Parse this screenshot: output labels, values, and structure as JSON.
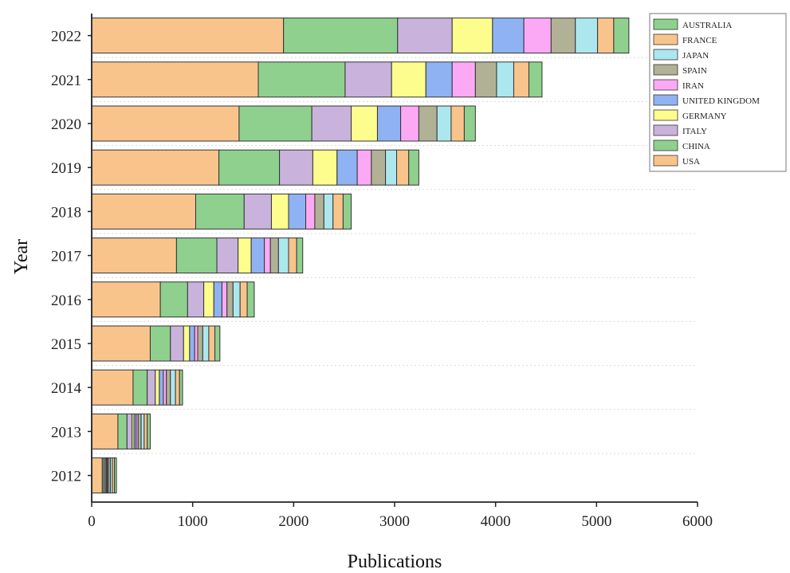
{
  "chart_data": {
    "type": "bar",
    "orientation": "horizontal",
    "stacked": true,
    "xlabel": "Publications",
    "ylabel": "Year",
    "xlim": [
      0,
      6000
    ],
    "x_ticks": [
      "0",
      "1000",
      "2000",
      "3000",
      "4000",
      "5000",
      "6000"
    ],
    "grid": "dotted horizontal lines between year rows",
    "legend_position": "top-right",
    "categories": [
      "2022",
      "2021",
      "2020",
      "2019",
      "2018",
      "2017",
      "2016",
      "2015",
      "2014",
      "2013",
      "2012"
    ],
    "series": [
      {
        "name": "USA",
        "color": "#f9c48c",
        "values": [
          1900,
          1650,
          1460,
          1260,
          1030,
          840,
          680,
          580,
          410,
          260,
          105
        ]
      },
      {
        "name": "CHINA",
        "color": "#8fd08f",
        "values": [
          1130,
          860,
          720,
          600,
          480,
          400,
          270,
          200,
          140,
          90,
          15
        ]
      },
      {
        "name": "ITALY",
        "color": "#c9b3dc",
        "values": [
          540,
          460,
          390,
          330,
          270,
          210,
          160,
          130,
          80,
          50,
          15
        ]
      },
      {
        "name": "GERMANY",
        "color": "#fdfd8e",
        "values": [
          400,
          340,
          260,
          240,
          170,
          130,
          100,
          60,
          40,
          20,
          10
        ]
      },
      {
        "name": "UNITED KINGDOM",
        "color": "#8fb3f2",
        "values": [
          310,
          260,
          230,
          200,
          170,
          130,
          80,
          50,
          40,
          20,
          10
        ]
      },
      {
        "name": "IRAN",
        "color": "#fca9f5",
        "values": [
          270,
          230,
          180,
          140,
          90,
          60,
          50,
          30,
          30,
          20,
          10
        ]
      },
      {
        "name": "SPAIN",
        "color": "#b1b196",
        "values": [
          240,
          210,
          180,
          140,
          90,
          80,
          60,
          50,
          40,
          30,
          20
        ]
      },
      {
        "name": "JAPAN",
        "color": "#ade7ee",
        "values": [
          220,
          170,
          140,
          110,
          90,
          100,
          70,
          60,
          50,
          30,
          20
        ]
      },
      {
        "name": "FRANCE",
        "color": "#f9c48c",
        "values": [
          160,
          150,
          130,
          120,
          100,
          80,
          70,
          60,
          40,
          30,
          20
        ]
      },
      {
        "name": "AUSTRALIA",
        "color": "#8fd08f",
        "values": [
          150,
          130,
          110,
          100,
          80,
          60,
          70,
          50,
          30,
          30,
          20
        ]
      }
    ]
  }
}
